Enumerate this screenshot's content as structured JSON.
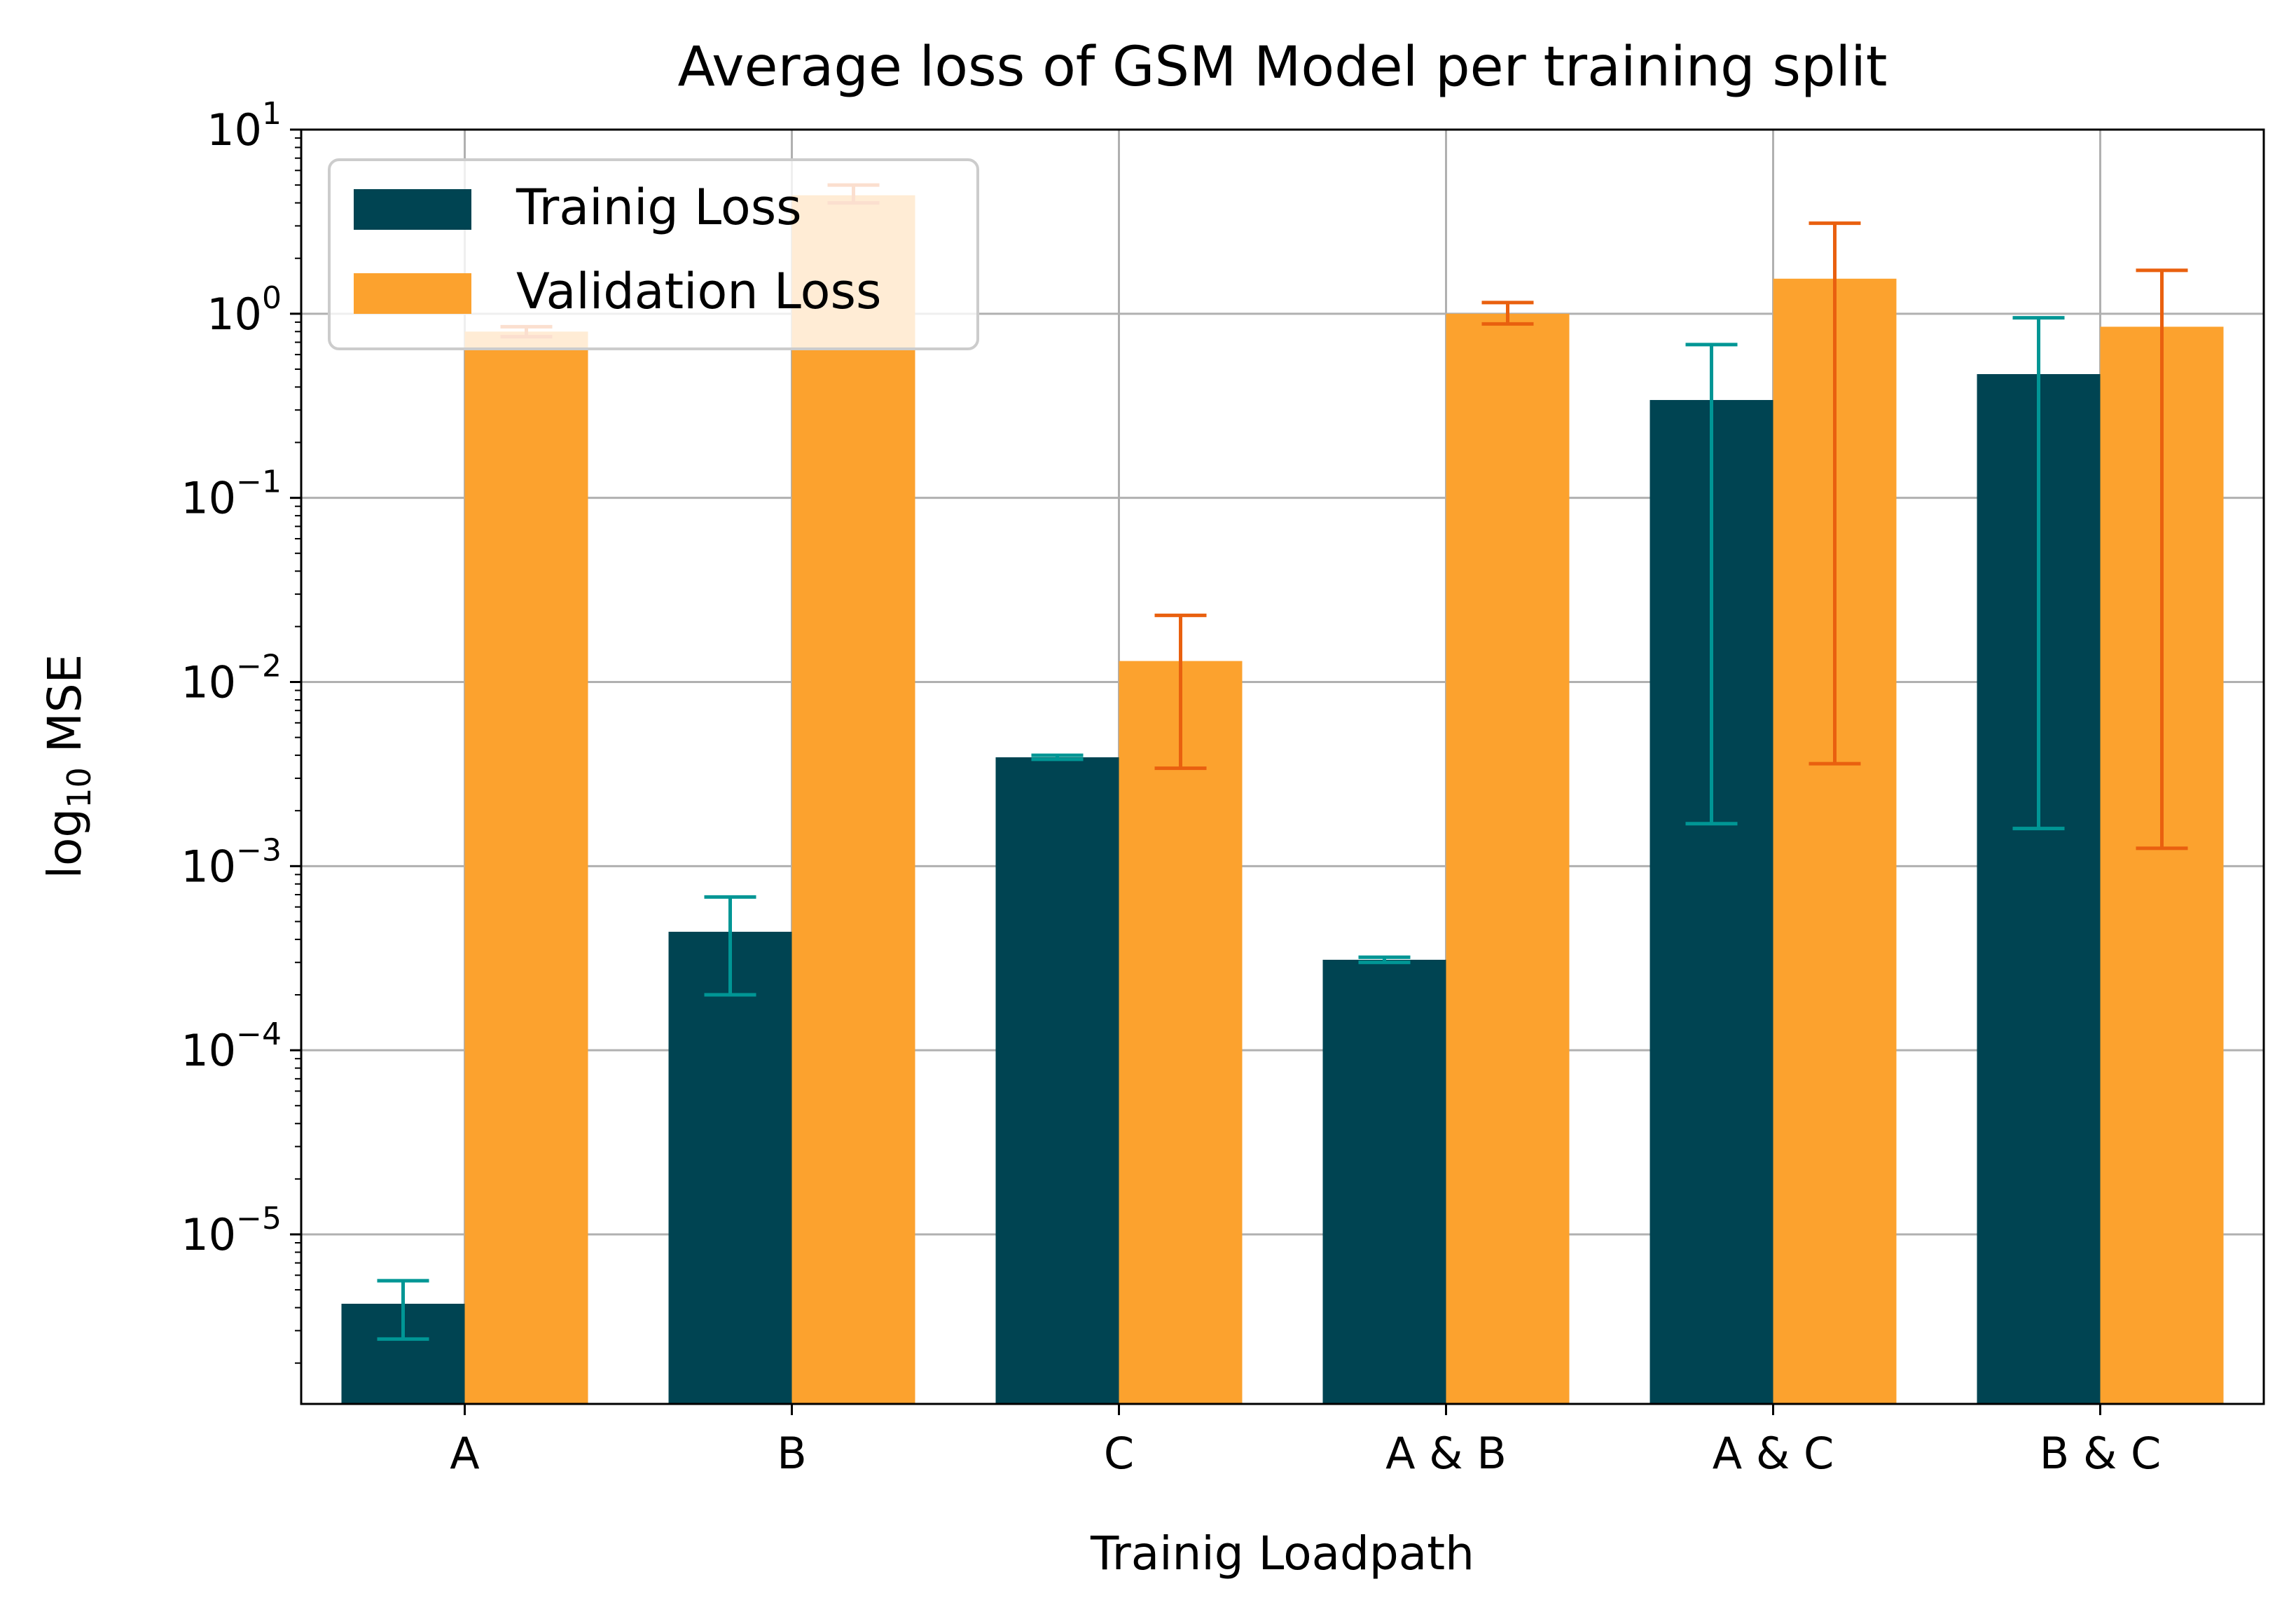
{
  "chart_data": {
    "type": "bar",
    "title": "Average loss of GSM Model per training split",
    "xlabel": "Trainig Loadpath",
    "ylabel": "log10 MSE",
    "ylabel_parts": {
      "base": "log",
      "subscript": "10",
      "suffix": " MSE"
    },
    "yscale": "log",
    "ylim": [
      1.2e-06,
      10
    ],
    "yticks": [
      {
        "value": 10,
        "base": "10",
        "exp": "1"
      },
      {
        "value": 1,
        "base": "10",
        "exp": "0"
      },
      {
        "value": 0.1,
        "base": "10",
        "exp": "−1"
      },
      {
        "value": 0.01,
        "base": "10",
        "exp": "−2"
      },
      {
        "value": 0.001,
        "base": "10",
        "exp": "−3"
      },
      {
        "value": 0.0001,
        "base": "10",
        "exp": "−4"
      },
      {
        "value": 1e-05,
        "base": "10",
        "exp": "−5"
      }
    ],
    "grid": true,
    "legend_position": "top-left",
    "categories": [
      "A",
      "B",
      "C",
      "A & B",
      "A & C",
      "B & C"
    ],
    "series": [
      {
        "name": "Trainig Loss",
        "color": "#004452",
        "error_color": "#009695",
        "values": [
          4.2e-06,
          0.00044,
          0.0039,
          0.00031,
          0.34,
          0.47
        ],
        "err_low": [
          2.7e-06,
          0.0002,
          0.0038,
          0.0003,
          0.0017,
          0.0016
        ],
        "err_high": [
          5.6e-06,
          0.00068,
          0.004,
          0.00032,
          0.68,
          0.95
        ]
      },
      {
        "name": "Validation Loss",
        "color": "#fca22e",
        "error_color": "#e9600f",
        "values": [
          0.8,
          4.4,
          0.013,
          1.0,
          1.55,
          0.85
        ],
        "err_low": [
          0.75,
          4.0,
          0.0034,
          0.88,
          0.0036,
          0.00125
        ],
        "err_high": [
          0.85,
          5.0,
          0.023,
          1.15,
          3.1,
          1.72
        ]
      }
    ]
  }
}
